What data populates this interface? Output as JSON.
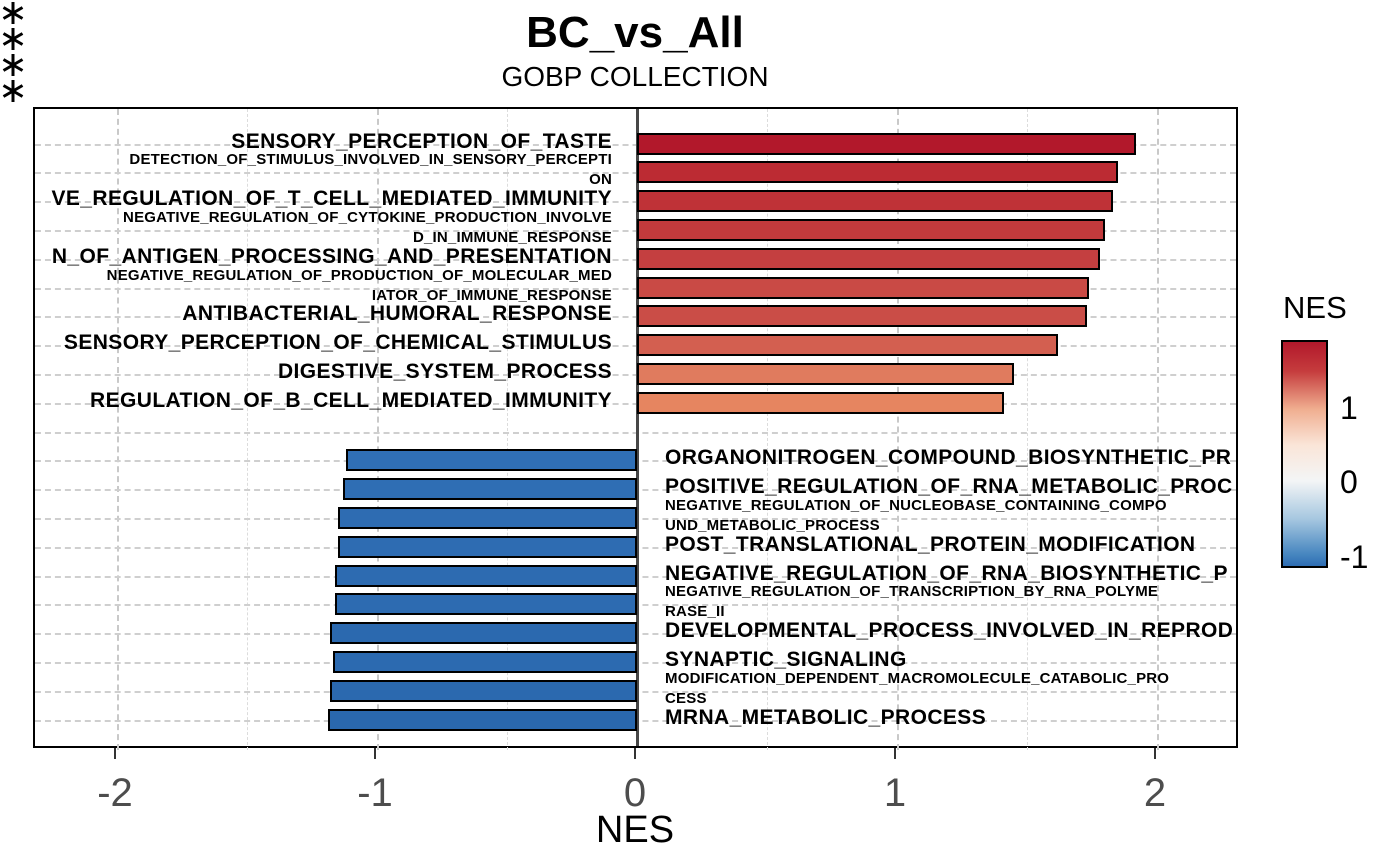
{
  "title": "BC_vs_All",
  "subtitle": "GOBP COLLECTION",
  "x_axis": {
    "title": "NES",
    "tick_labels": [
      "-2",
      "-1",
      "0",
      "1",
      "2"
    ],
    "tick_values": [
      -2,
      -1,
      0,
      1,
      2
    ],
    "range": [
      -2.32,
      2.32
    ]
  },
  "legend": {
    "title": "NES",
    "tick_labels": [
      "1",
      "0",
      "-1"
    ],
    "tick_values": [
      1,
      0,
      -1
    ],
    "gradient_top_value": 1.91,
    "gradient_bottom_value": -1.15,
    "gradient_css": "linear-gradient(to bottom,#B2182B 0%,#C53C3D 13%,#F0AE90 30%,#FAE5D8 46%,#F3F5F6 62%,#A6C7E0 79%,#4585BF 95%,#2E6DB3 100%)"
  },
  "style": {
    "grid_on": true,
    "bar_outline": "#000000",
    "zero_line_color": "#474747",
    "positive_max_color": "#B2182B",
    "negative_color": "#2E6DB3"
  },
  "chart_data": {
    "type": "bar",
    "orientation": "horizontal",
    "value_name": "NES",
    "xlim": [
      -2.32,
      2.32
    ],
    "gridlines_every": 0.5,
    "bars": [
      {
        "label": "SENSORY_PERCEPTION_OF_TASTE",
        "lines": [
          "SENSORY_PERCEPTION_OF_TASTE"
        ],
        "size": "large",
        "nes": 1.92,
        "color": "#B2182B",
        "significant": false
      },
      {
        "label": "DETECTION_OF_STIMULUS_INVOLVED_IN_SENSORY_PERCEPTION",
        "lines": [
          "DETECTION_OF_STIMULUS_INVOLVED_IN_SENSORY_PERCEPTI",
          "ON"
        ],
        "size": "small",
        "nes": 1.85,
        "color": "#BC2B33",
        "significant": false
      },
      {
        "label": "VE_REGULATION_OF_T_CELL_MEDIATED_IMMUNITY",
        "lines": [
          "VE_REGULATION_OF_T_CELL_MEDIATED_IMMUNITY"
        ],
        "size": "large",
        "nes": 1.83,
        "color": "#BF3237",
        "significant": false
      },
      {
        "label": "NEGATIVE_REGULATION_OF_CYTOKINE_PRODUCTION_INVOLVED_IN_IMMUNE_RESPONSE",
        "lines": [
          "NEGATIVE_REGULATION_OF_CYTOKINE_PRODUCTION_INVOLVE",
          "D_IN_IMMUNE_RESPONSE"
        ],
        "size": "small",
        "nes": 1.8,
        "color": "#C23A3C",
        "significant": false
      },
      {
        "label": "N_OF_ANTIGEN_PROCESSING_AND_PRESENTATION",
        "lines": [
          "N_OF_ANTIGEN_PROCESSING_AND_PRESENTATION"
        ],
        "size": "large",
        "nes": 1.78,
        "color": "#C43F40",
        "significant": false
      },
      {
        "label": "NEGATIVE_REGULATION_OF_PRODUCTION_OF_MOLECULAR_MEDIATOR_OF_IMMUNE_RESPONSE",
        "lines": [
          "NEGATIVE_REGULATION_OF_PRODUCTION_OF_MOLECULAR_MED",
          "IATOR_OF_IMMUNE_RESPONSE"
        ],
        "size": "small",
        "nes": 1.74,
        "color": "#C94A45",
        "significant": false
      },
      {
        "label": "ANTIBACTERIAL_HUMORAL_RESPONSE",
        "lines": [
          "ANTIBACTERIAL_HUMORAL_RESPONSE"
        ],
        "size": "large",
        "nes": 1.73,
        "color": "#CA4D47",
        "significant": false
      },
      {
        "label": "SENSORY_PERCEPTION_OF_CHEMICAL_STIMULUS",
        "lines": [
          "SENSORY_PERCEPTION_OF_CHEMICAL_STIMULUS"
        ],
        "size": "large",
        "nes": 1.62,
        "color": "#D35F50",
        "significant": false
      },
      {
        "label": "DIGESTIVE_SYSTEM_PROCESS",
        "lines": [
          "DIGESTIVE_SYSTEM_PROCESS"
        ],
        "size": "large",
        "nes": 1.45,
        "color": "#E07B5E",
        "significant": false
      },
      {
        "label": "REGULATION_OF_B_CELL_MEDIATED_IMMUNITY",
        "lines": [
          "REGULATION_OF_B_CELL_MEDIATED_IMMUNITY"
        ],
        "size": "large",
        "nes": 1.41,
        "color": "#E68560",
        "significant": false
      },
      {
        "label": "ORGANONITROGEN_COMPOUND_BIOSYNTHETIC_PR",
        "lines": [
          "ORGANONITROGEN_COMPOUND_BIOSYNTHETIC_PR"
        ],
        "size": "large",
        "nes": -1.12,
        "color": "#306FB5",
        "significant": false
      },
      {
        "label": "POSITIVE_REGULATION_OF_RNA_METABOLIC_PROC",
        "lines": [
          "POSITIVE_REGULATION_OF_RNA_METABOLIC_PROC"
        ],
        "size": "large",
        "nes": -1.13,
        "color": "#2F6EB4",
        "significant": true
      },
      {
        "label": "NEGATIVE_REGULATION_OF_NUCLEOBASE_CONTAINING_COMPOUND_METABOLIC_PROCESS",
        "lines": [
          "NEGATIVE_REGULATION_OF_NUCLEOBASE_CONTAINING_COMPO",
          "UND_METABOLIC_PROCESS"
        ],
        "size": "small",
        "nes": -1.15,
        "color": "#2E6CB2",
        "significant": true
      },
      {
        "label": "POST_TRANSLATIONAL_PROTEIN_MODIFICATION",
        "lines": [
          "POST_TRANSLATIONAL_PROTEIN_MODIFICATION"
        ],
        "size": "large",
        "nes": -1.15,
        "color": "#2E6CB2",
        "significant": false
      },
      {
        "label": "NEGATIVE_REGULATION_OF_RNA_BIOSYNTHETIC_P",
        "lines": [
          "NEGATIVE_REGULATION_OF_RNA_BIOSYNTHETIC_P"
        ],
        "size": "large",
        "nes": -1.16,
        "color": "#2D6BB1",
        "significant": true
      },
      {
        "label": "NEGATIVE_REGULATION_OF_TRANSCRIPTION_BY_RNA_POLYMERASE_II",
        "lines": [
          "NEGATIVE_REGULATION_OF_TRANSCRIPTION_BY_RNA_POLYME",
          "RASE_II"
        ],
        "size": "small",
        "nes": -1.16,
        "color": "#2D6BB1",
        "significant": false
      },
      {
        "label": "DEVELOPMENTAL_PROCESS_INVOLVED_IN_REPROD",
        "lines": [
          "DEVELOPMENTAL_PROCESS_INVOLVED_IN_REPROD"
        ],
        "size": "large",
        "nes": -1.18,
        "color": "#2B69AF",
        "significant": false
      },
      {
        "label": "SYNAPTIC_SIGNALING",
        "lines": [
          "SYNAPTIC_SIGNALING"
        ],
        "size": "large",
        "nes": -1.17,
        "color": "#2C6AB0",
        "significant": false
      },
      {
        "label": "MODIFICATION_DEPENDENT_MACROMOLECULE_CATABOLIC_PROCESS",
        "lines": [
          "MODIFICATION_DEPENDENT_MACROMOLECULE_CATABOLIC_PRO",
          "CESS"
        ],
        "size": "small",
        "nes": -1.18,
        "color": "#2B69AF",
        "significant": false
      },
      {
        "label": "MRNA_METABOLIC_PROCESS",
        "lines": [
          "MRNA_METABOLIC_PROCESS"
        ],
        "size": "large",
        "nes": -1.19,
        "color": "#2A68AE",
        "significant": true
      }
    ]
  }
}
